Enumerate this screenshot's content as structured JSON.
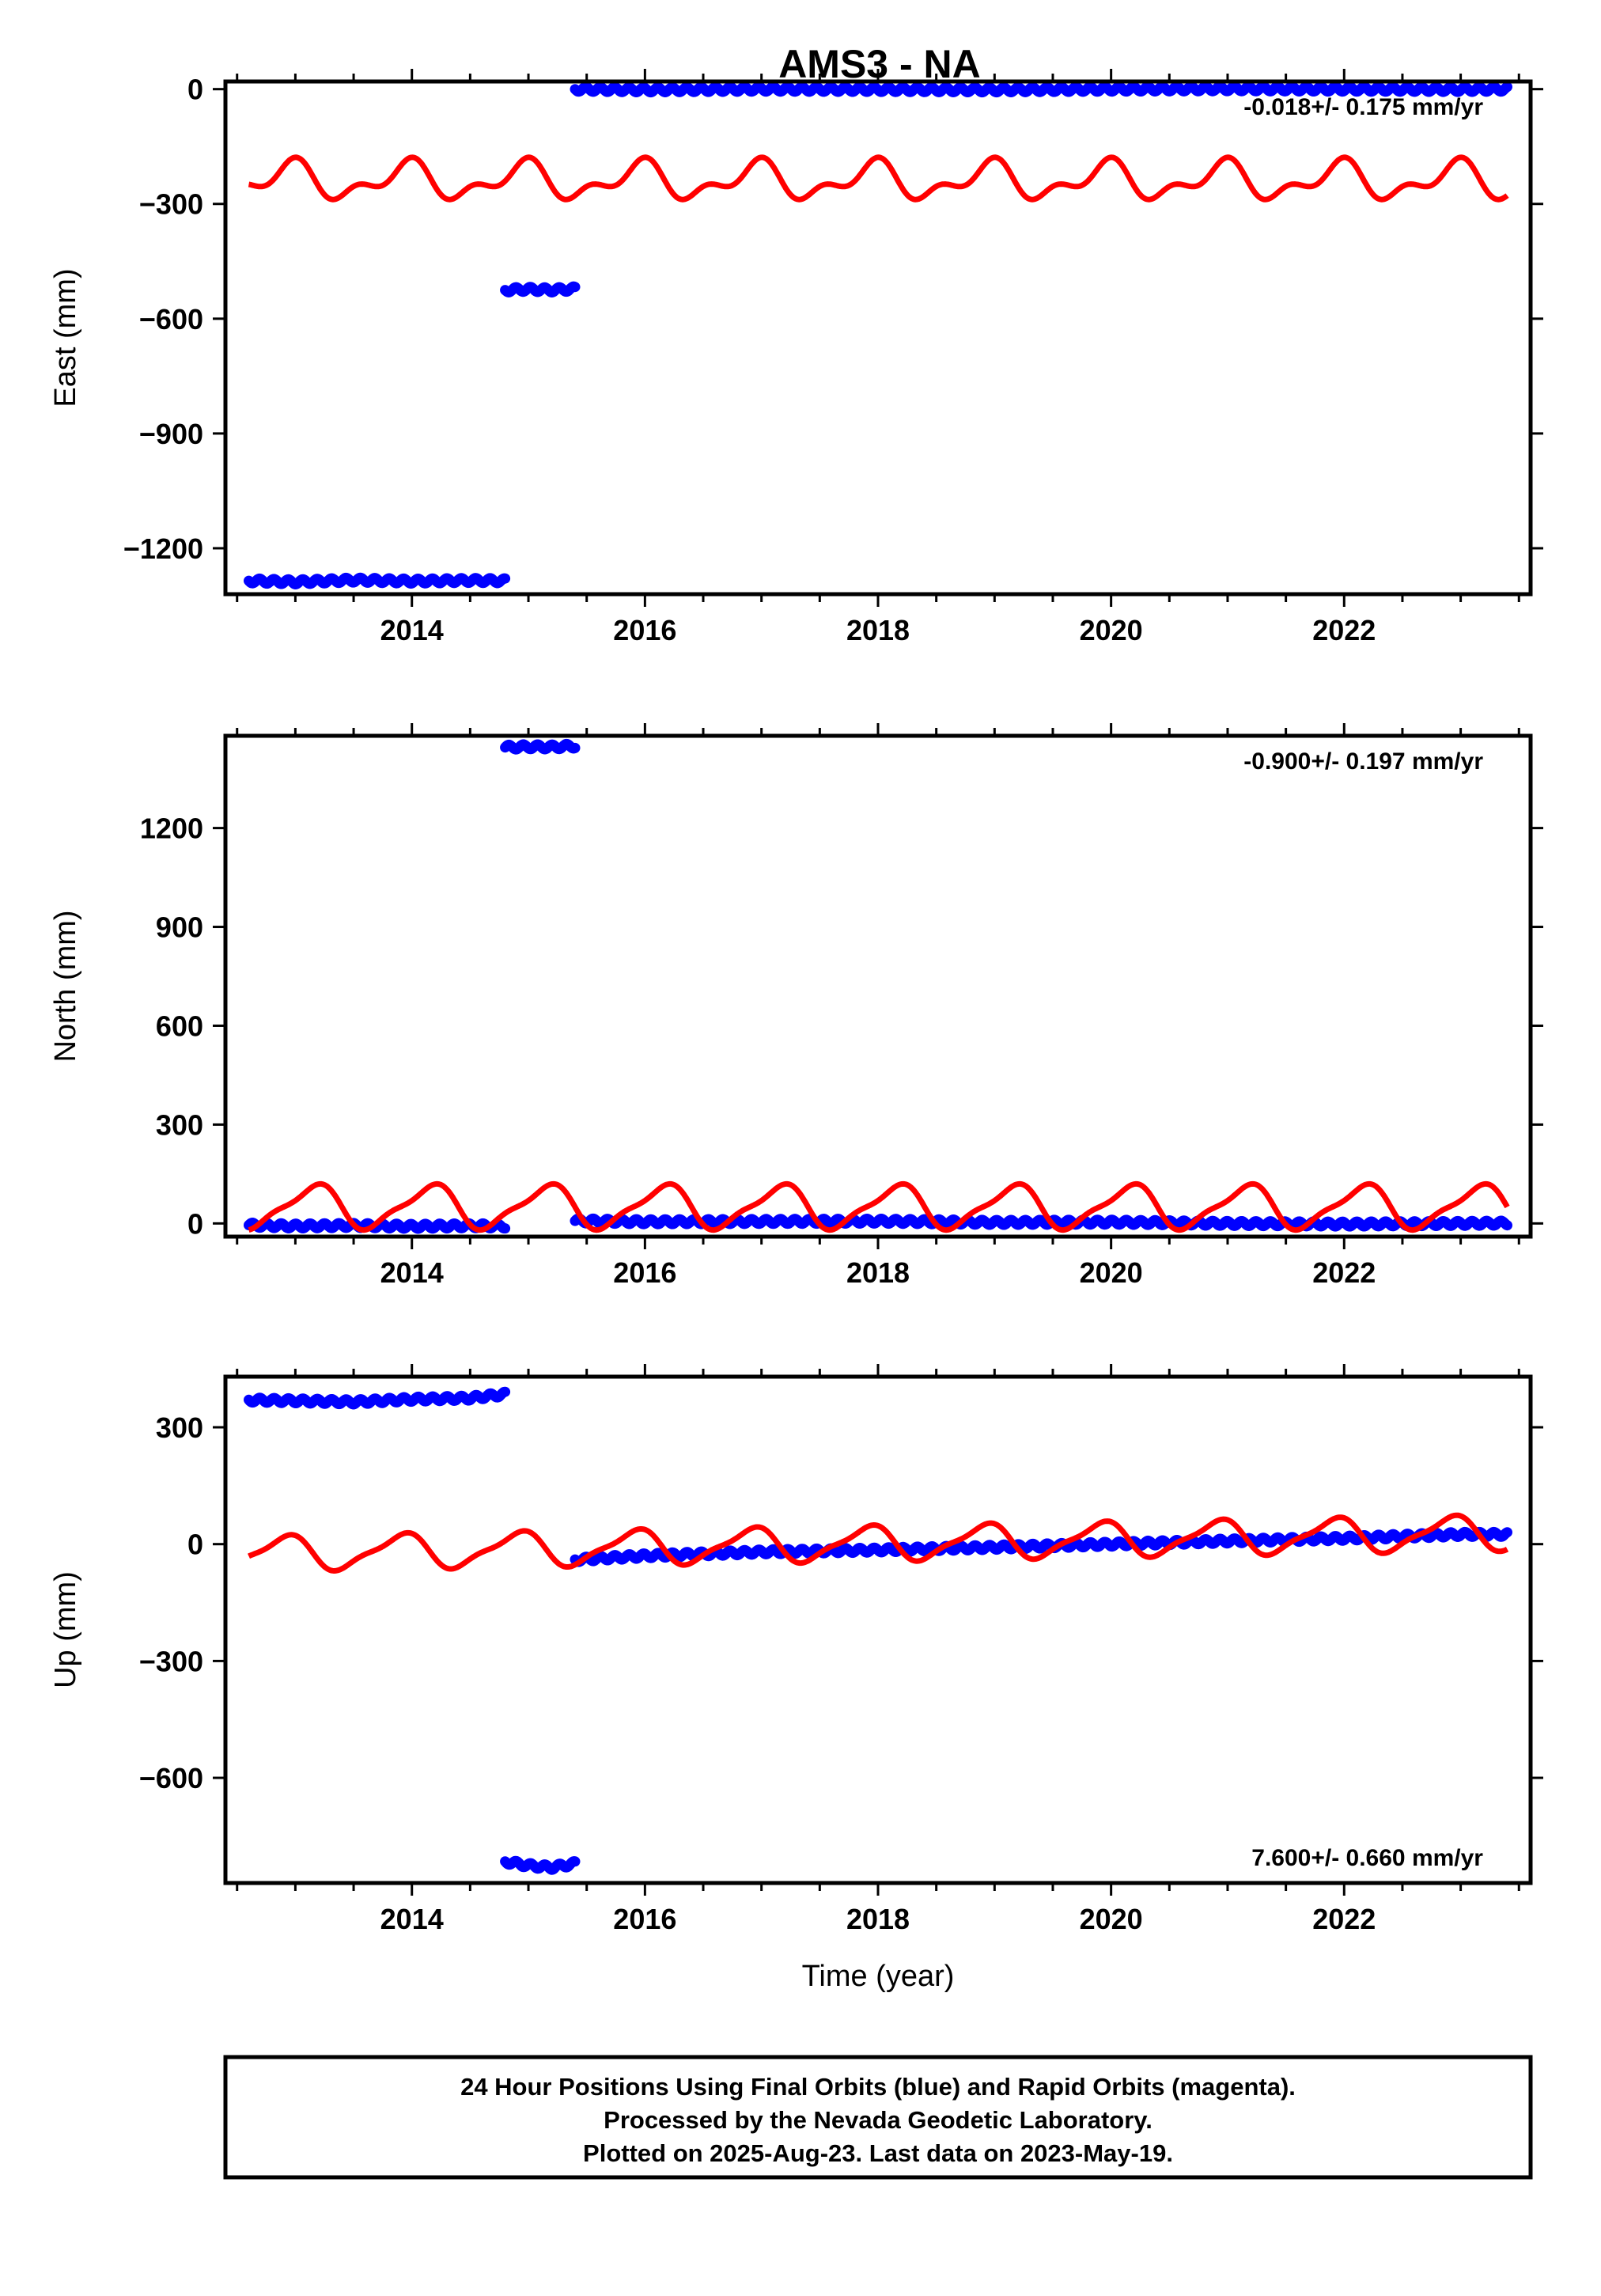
{
  "title": "AMS3 - NA",
  "colors": {
    "final_orbits": "#0000ff",
    "rapid_orbits": "#ff0000",
    "frame": "#000000"
  },
  "chart_data": [
    {
      "type": "scatter",
      "panel": "east",
      "ylabel": "East (mm)",
      "xlabel": "",
      "xlim": [
        2012.4,
        2023.6
      ],
      "ylim": [
        -1320,
        20
      ],
      "x_ticks": [
        2014,
        2016,
        2018,
        2020,
        2022
      ],
      "x_tick_labels": [
        "2014",
        "2016",
        "2018",
        "2020",
        "2022"
      ],
      "y_ticks": [
        0,
        -300,
        -600,
        -900,
        -1200
      ],
      "y_tick_labels": [
        "0",
        "−300",
        "−600",
        "−900",
        "−1200"
      ],
      "rate": "-0.018+/- 0.175 mm/yr",
      "rate_position": "top-right",
      "series": [
        {
          "role": "final",
          "color": "#0000ff",
          "segments": [
            {
              "x": [
                2012.6,
                2013.0,
                2013.5,
                2014.0,
                2014.5,
                2014.8
              ],
              "y": [
                -1285,
                -1288,
                -1283,
                -1286,
                -1284,
                -1285
              ]
            },
            {
              "x": [
                2014.8,
                2015.0,
                2015.2,
                2015.4
              ],
              "y": [
                -525,
                -523,
                -525,
                -522
              ]
            },
            {
              "x": [
                2015.4,
                2016.0,
                2017.0,
                2018.0,
                2019.0,
                2020.0,
                2021.0,
                2022.0,
                2023.0,
                2023.4
              ],
              "y": [
                0,
                -2,
                0,
                -1,
                -2,
                0,
                1,
                0,
                -1,
                0
              ]
            }
          ]
        },
        {
          "role": "rapid",
          "color": "#ff0000",
          "model": {
            "start": 2012.6,
            "end": 2023.4,
            "base": -240,
            "amp1": 40,
            "phase1": 0.3,
            "amp2": 25,
            "phase2": 0.1
          }
        }
      ]
    },
    {
      "type": "scatter",
      "panel": "north",
      "ylabel": "North (mm)",
      "xlabel": "",
      "xlim": [
        2012.4,
        2023.6
      ],
      "ylim": [
        -40,
        1480
      ],
      "x_ticks": [
        2014,
        2016,
        2018,
        2020,
        2022
      ],
      "x_tick_labels": [
        "2014",
        "2016",
        "2018",
        "2020",
        "2022"
      ],
      "y_ticks": [
        0,
        300,
        600,
        900,
        1200
      ],
      "y_tick_labels": [
        "0",
        "300",
        "600",
        "900",
        "1200"
      ],
      "rate": "-0.900+/- 0.197 mm/yr",
      "rate_position": "top-right",
      "series": [
        {
          "role": "final",
          "color": "#0000ff",
          "segments": [
            {
              "x": [
                2012.6,
                2013.0,
                2013.5,
                2014.0,
                2014.5,
                2014.8
              ],
              "y": [
                -5,
                -8,
                -6,
                -9,
                -7,
                -8
              ]
            },
            {
              "x": [
                2014.8,
                2015.0,
                2015.2,
                2015.4
              ],
              "y": [
                1445,
                1447,
                1446,
                1449
              ]
            },
            {
              "x": [
                2015.4,
                2016.0,
                2017.0,
                2018.0,
                2019.0,
                2020.0,
                2021.0,
                2022.0,
                2023.0,
                2023.4
              ],
              "y": [
                8,
                5,
                6,
                7,
                3,
                4,
                0,
                -2,
                0,
                1
              ]
            }
          ]
        },
        {
          "role": "rapid",
          "color": "#ff0000",
          "model": {
            "start": 2012.6,
            "end": 2023.4,
            "base": 50,
            "amp1": 62,
            "phase1": 0.1,
            "amp2": 18,
            "phase2": 0.35
          }
        }
      ]
    },
    {
      "type": "scatter",
      "panel": "up",
      "ylabel": "Up (mm)",
      "xlabel": "Time (year)",
      "xlim": [
        2012.4,
        2023.6
      ],
      "ylim": [
        -870,
        430
      ],
      "x_ticks": [
        2014,
        2016,
        2018,
        2020,
        2022
      ],
      "x_tick_labels": [
        "2014",
        "2016",
        "2018",
        "2020",
        "2022"
      ],
      "y_ticks": [
        300,
        0,
        -300,
        -600
      ],
      "y_tick_labels": [
        "300",
        "0",
        "−300",
        "−600"
      ],
      "rate": "7.600+/- 0.660 mm/yr",
      "rate_position": "bottom-right",
      "series": [
        {
          "role": "final",
          "color": "#0000ff",
          "segments": [
            {
              "x": [
                2012.6,
                2013.0,
                2013.5,
                2014.0,
                2014.5,
                2014.8
              ],
              "y": [
                370,
                368,
                365,
                372,
                375,
                385
              ]
            },
            {
              "x": [
                2014.8,
                2015.0,
                2015.2,
                2015.4
              ],
              "y": [
                -815,
                -825,
                -830,
                -820
              ]
            },
            {
              "x": [
                2015.4,
                2016.0,
                2017.0,
                2018.0,
                2019.0,
                2020.0,
                2021.0,
                2022.0,
                2023.0,
                2023.4
              ],
              "y": [
                -40,
                -30,
                -20,
                -15,
                -8,
                0,
                8,
                15,
                25,
                25
              ]
            }
          ]
        },
        {
          "role": "rapid",
          "color": "#ff0000",
          "model": {
            "start": 2012.6,
            "end": 2023.4,
            "base": -25,
            "trend": 5,
            "ref": 2012.6,
            "amp1": 42,
            "phase1": 0.35,
            "amp2": 12,
            "phase2": 0.1
          }
        }
      ]
    }
  ],
  "footer": {
    "lines": [
      "24 Hour Positions Using Final Orbits (blue) and Rapid Orbits (magenta).",
      "Processed by the Nevada Geodetic Laboratory.",
      "Plotted on 2025-Aug-23. Last data on 2023-May-19."
    ]
  }
}
